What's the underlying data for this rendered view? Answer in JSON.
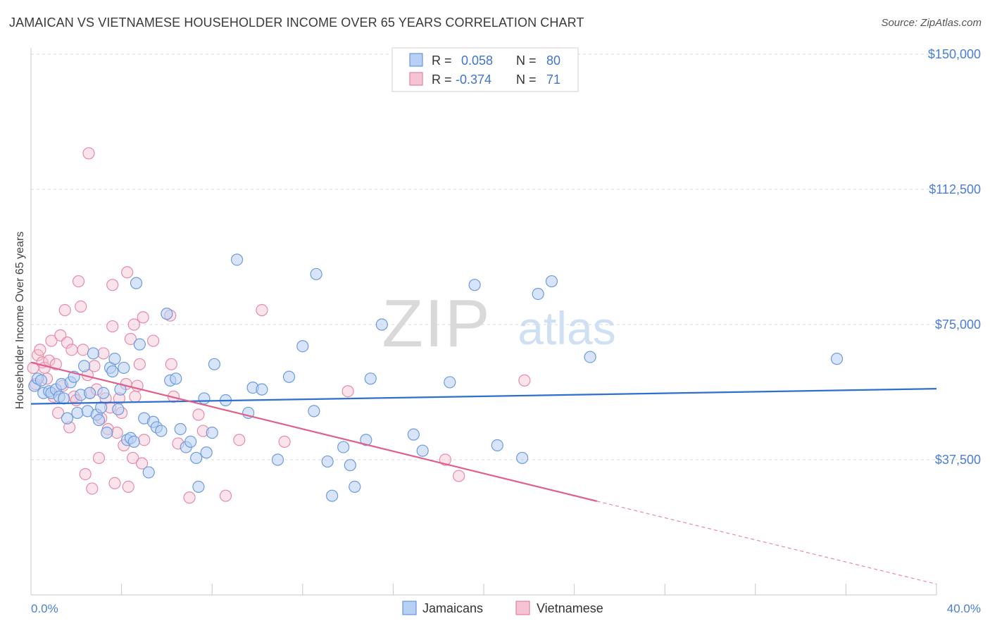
{
  "header": {
    "title": "JAMAICAN VS VIETNAMESE HOUSEHOLDER INCOME OVER 65 YEARS CORRELATION CHART",
    "source": "Source: ZipAtlas.com"
  },
  "colors": {
    "blue": "#4f86d9",
    "blue_fill": "#b8d0f3",
    "pink": "#e0708f",
    "pink_fill": "#f5c3d3",
    "axis_label": "#4a7fd4",
    "grid": "#d8d8d8"
  },
  "legend_top": {
    "rows": [
      {
        "r_label": "R =",
        "r_value": "0.058",
        "n_label": "N =",
        "n_value": "80"
      },
      {
        "r_label": "R =",
        "r_value": "-0.374",
        "n_label": "N =",
        "n_value": "71"
      }
    ]
  },
  "watermark": {
    "zip": "ZIP",
    "atlas": "atlas"
  },
  "chart_data": {
    "type": "scatter",
    "title": "JAMAICAN VS VIETNAMESE HOUSEHOLDER INCOME OVER 65 YEARS CORRELATION CHART",
    "xlabel": "",
    "ylabel": "Householder Income Over 65 years",
    "xlim": [
      0,
      40
    ],
    "ylim": [
      0,
      155000
    ],
    "x_tick_labels": [
      "0.0%",
      "40.0%"
    ],
    "y_ticks": [
      37500,
      75000,
      112500,
      150000
    ],
    "y_tick_labels": [
      "$37,500",
      "$75,000",
      "$112,500",
      "$150,000"
    ],
    "grid": true,
    "legend_position": "bottom-center",
    "series": [
      {
        "name": "Jamaicans",
        "color": "#4f86d9",
        "trend": {
          "x": [
            0,
            40
          ],
          "y": [
            53000,
            57200
          ],
          "dashed_beyond": null
        },
        "points": [
          [
            0.15,
            58000
          ],
          [
            0.3,
            60000
          ],
          [
            0.45,
            59500
          ],
          [
            0.55,
            56000
          ],
          [
            0.8,
            56500
          ],
          [
            0.9,
            56000
          ],
          [
            1.1,
            57000
          ],
          [
            1.25,
            55000
          ],
          [
            1.35,
            58500
          ],
          [
            1.45,
            54500
          ],
          [
            1.6,
            49000
          ],
          [
            1.75,
            59000
          ],
          [
            1.9,
            60500
          ],
          [
            2.05,
            50500
          ],
          [
            2.2,
            55500
          ],
          [
            2.35,
            63500
          ],
          [
            2.5,
            51000
          ],
          [
            2.6,
            56000
          ],
          [
            2.75,
            67000
          ],
          [
            2.9,
            50000
          ],
          [
            3.0,
            48500
          ],
          [
            3.1,
            52000
          ],
          [
            3.2,
            56000
          ],
          [
            3.35,
            45000
          ],
          [
            3.5,
            63000
          ],
          [
            3.6,
            62000
          ],
          [
            3.7,
            65500
          ],
          [
            3.85,
            51500
          ],
          [
            3.95,
            57000
          ],
          [
            4.1,
            63000
          ],
          [
            4.25,
            43000
          ],
          [
            4.4,
            43500
          ],
          [
            4.55,
            42500
          ],
          [
            4.65,
            86500
          ],
          [
            4.8,
            69500
          ],
          [
            5.0,
            49000
          ],
          [
            5.2,
            34000
          ],
          [
            5.4,
            48000
          ],
          [
            5.55,
            46500
          ],
          [
            5.75,
            45500
          ],
          [
            6.0,
            78000
          ],
          [
            6.15,
            59500
          ],
          [
            6.4,
            60000
          ],
          [
            6.6,
            46000
          ],
          [
            6.85,
            41000
          ],
          [
            7.05,
            42500
          ],
          [
            7.3,
            38000
          ],
          [
            7.4,
            30000
          ],
          [
            7.65,
            54500
          ],
          [
            7.75,
            39500
          ],
          [
            8.0,
            45000
          ],
          [
            8.1,
            64000
          ],
          [
            8.6,
            54000
          ],
          [
            9.1,
            93000
          ],
          [
            9.6,
            50500
          ],
          [
            9.8,
            57500
          ],
          [
            10.2,
            57000
          ],
          [
            10.9,
            37500
          ],
          [
            11.4,
            60500
          ],
          [
            12.0,
            69000
          ],
          [
            12.5,
            51000
          ],
          [
            12.6,
            89000
          ],
          [
            13.1,
            37000
          ],
          [
            13.3,
            27500
          ],
          [
            13.8,
            41000
          ],
          [
            14.1,
            36000
          ],
          [
            14.3,
            30000
          ],
          [
            14.8,
            43000
          ],
          [
            15.0,
            60000
          ],
          [
            15.5,
            75000
          ],
          [
            16.9,
            44500
          ],
          [
            17.3,
            40000
          ],
          [
            18.5,
            59000
          ],
          [
            19.6,
            86000
          ],
          [
            20.6,
            41500
          ],
          [
            21.7,
            38000
          ],
          [
            22.4,
            83500
          ],
          [
            23.0,
            87000
          ],
          [
            24.7,
            66000
          ],
          [
            35.6,
            65500
          ]
        ]
      },
      {
        "name": "Vietnamese",
        "color": "#e0708f",
        "trend": {
          "x": [
            0,
            25
          ],
          "y": [
            64500,
            26000
          ],
          "dashed_to": [
            40,
            3000
          ]
        },
        "points": [
          [
            0.1,
            63000
          ],
          [
            0.2,
            58500
          ],
          [
            0.3,
            66500
          ],
          [
            0.4,
            68000
          ],
          [
            0.5,
            64500
          ],
          [
            0.6,
            63000
          ],
          [
            0.7,
            60000
          ],
          [
            0.8,
            65000
          ],
          [
            0.9,
            70500
          ],
          [
            1.0,
            55000
          ],
          [
            1.1,
            64000
          ],
          [
            1.2,
            50500
          ],
          [
            1.3,
            72000
          ],
          [
            1.4,
            58000
          ],
          [
            1.5,
            79000
          ],
          [
            1.6,
            70000
          ],
          [
            1.7,
            46500
          ],
          [
            1.8,
            68000
          ],
          [
            1.9,
            55000
          ],
          [
            2.0,
            54000
          ],
          [
            2.1,
            87000
          ],
          [
            2.2,
            80000
          ],
          [
            2.3,
            68000
          ],
          [
            2.4,
            33500
          ],
          [
            2.5,
            61000
          ],
          [
            2.6,
            56000
          ],
          [
            2.7,
            29500
          ],
          [
            2.8,
            63500
          ],
          [
            2.9,
            57000
          ],
          [
            3.0,
            38000
          ],
          [
            3.1,
            49000
          ],
          [
            3.2,
            67000
          ],
          [
            3.3,
            54500
          ],
          [
            3.4,
            46000
          ],
          [
            3.5,
            52000
          ],
          [
            3.6,
            74500
          ],
          [
            3.7,
            31000
          ],
          [
            3.8,
            45000
          ],
          [
            3.9,
            54500
          ],
          [
            4.0,
            50500
          ],
          [
            4.1,
            41500
          ],
          [
            4.2,
            58500
          ],
          [
            4.3,
            30000
          ],
          [
            4.4,
            71000
          ],
          [
            4.5,
            38000
          ],
          [
            4.6,
            55000
          ],
          [
            4.7,
            58000
          ],
          [
            4.8,
            64000
          ],
          [
            4.9,
            36500
          ],
          [
            5.0,
            43000
          ],
          [
            2.55,
            122500
          ],
          [
            3.6,
            86000
          ],
          [
            4.25,
            89500
          ],
          [
            4.55,
            75000
          ],
          [
            4.95,
            77000
          ],
          [
            5.4,
            70500
          ],
          [
            6.15,
            77500
          ],
          [
            6.2,
            64000
          ],
          [
            6.3,
            55000
          ],
          [
            6.5,
            42000
          ],
          [
            7.0,
            27000
          ],
          [
            7.4,
            50000
          ],
          [
            7.6,
            45500
          ],
          [
            8.6,
            27500
          ],
          [
            9.2,
            43000
          ],
          [
            10.2,
            79000
          ],
          [
            11.2,
            42500
          ],
          [
            14.0,
            56500
          ],
          [
            18.3,
            37500
          ],
          [
            18.9,
            33000
          ],
          [
            21.8,
            59500
          ]
        ]
      }
    ]
  },
  "legend_bottom": {
    "items": [
      "Jamaicans",
      "Vietnamese"
    ]
  }
}
